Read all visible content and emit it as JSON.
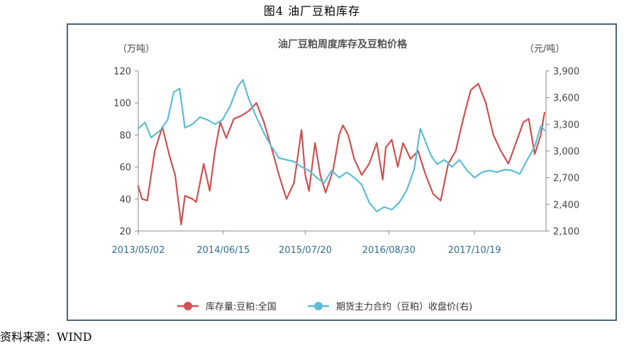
{
  "figure_title": "图4 油厂豆粕库存",
  "source": "资料来源：WIND",
  "chart_data": {
    "type": "line",
    "title": "油厂豆粕周度库存及豆粕价格",
    "left_unit": "（万吨）",
    "right_unit": "（元/吨）",
    "x_tick_labels": [
      "2013/05/02",
      "2014/06/15",
      "2015/07/20",
      "2016/08/30",
      "2017/10/19"
    ],
    "y_left": {
      "ticks": [
        20,
        40,
        60,
        80,
        100,
        120
      ],
      "lim": [
        20,
        120
      ]
    },
    "y_right": {
      "ticks": [
        "2,100",
        "2,400",
        "2,700",
        "3,000",
        "3,300",
        "3,600",
        "3,900"
      ],
      "lim": [
        2100,
        3900
      ]
    },
    "grid": false,
    "legend_position": "bottom",
    "series": [
      {
        "name": "库存量:豆粕:全国",
        "axis": "left",
        "color": "#d0504f",
        "points": [
          [
            2013.33,
            48
          ],
          [
            2013.38,
            40
          ],
          [
            2013.45,
            39
          ],
          [
            2013.55,
            70
          ],
          [
            2013.65,
            85
          ],
          [
            2013.75,
            66
          ],
          [
            2013.82,
            55
          ],
          [
            2013.9,
            24
          ],
          [
            2013.95,
            42
          ],
          [
            2014.05,
            40
          ],
          [
            2014.1,
            38
          ],
          [
            2014.2,
            62
          ],
          [
            2014.28,
            45
          ],
          [
            2014.35,
            70
          ],
          [
            2014.42,
            88
          ],
          [
            2014.5,
            78
          ],
          [
            2014.6,
            90
          ],
          [
            2014.7,
            92
          ],
          [
            2014.8,
            95
          ],
          [
            2014.9,
            100
          ],
          [
            2015.0,
            88
          ],
          [
            2015.1,
            72
          ],
          [
            2015.2,
            55
          ],
          [
            2015.3,
            40
          ],
          [
            2015.4,
            50
          ],
          [
            2015.5,
            83
          ],
          [
            2015.55,
            55
          ],
          [
            2015.6,
            45
          ],
          [
            2015.68,
            75
          ],
          [
            2015.75,
            55
          ],
          [
            2015.82,
            44
          ],
          [
            2015.92,
            58
          ],
          [
            2016.0,
            80
          ],
          [
            2016.05,
            86
          ],
          [
            2016.12,
            80
          ],
          [
            2016.2,
            65
          ],
          [
            2016.3,
            55
          ],
          [
            2016.4,
            62
          ],
          [
            2016.5,
            75
          ],
          [
            2016.58,
            52
          ],
          [
            2016.62,
            72
          ],
          [
            2016.7,
            77
          ],
          [
            2016.78,
            60
          ],
          [
            2016.85,
            75
          ],
          [
            2016.95,
            65
          ],
          [
            2017.05,
            70
          ],
          [
            2017.15,
            55
          ],
          [
            2017.25,
            43
          ],
          [
            2017.35,
            39
          ],
          [
            2017.45,
            62
          ],
          [
            2017.55,
            70
          ],
          [
            2017.65,
            90
          ],
          [
            2017.75,
            108
          ],
          [
            2017.85,
            112
          ],
          [
            2017.95,
            100
          ],
          [
            2018.05,
            80
          ],
          [
            2018.15,
            70
          ],
          [
            2018.25,
            62
          ],
          [
            2018.35,
            75
          ],
          [
            2018.45,
            88
          ],
          [
            2018.52,
            90
          ],
          [
            2018.6,
            68
          ],
          [
            2018.68,
            80
          ],
          [
            2018.73,
            94
          ]
        ]
      },
      {
        "name": "期货主力合约（豆粕）收盘价(右)",
        "axis": "right",
        "color": "#5bbdd6",
        "points": [
          [
            2013.33,
            3250
          ],
          [
            2013.42,
            3320
          ],
          [
            2013.5,
            3150
          ],
          [
            2013.62,
            3230
          ],
          [
            2013.72,
            3350
          ],
          [
            2013.8,
            3660
          ],
          [
            2013.88,
            3700
          ],
          [
            2013.95,
            3260
          ],
          [
            2014.05,
            3300
          ],
          [
            2014.15,
            3380
          ],
          [
            2014.25,
            3350
          ],
          [
            2014.35,
            3300
          ],
          [
            2014.45,
            3350
          ],
          [
            2014.55,
            3500
          ],
          [
            2014.65,
            3720
          ],
          [
            2014.72,
            3800
          ],
          [
            2014.8,
            3580
          ],
          [
            2014.9,
            3380
          ],
          [
            2015.0,
            3200
          ],
          [
            2015.1,
            3050
          ],
          [
            2015.2,
            2920
          ],
          [
            2015.3,
            2900
          ],
          [
            2015.4,
            2880
          ],
          [
            2015.5,
            2820
          ],
          [
            2015.6,
            2780
          ],
          [
            2015.7,
            2700
          ],
          [
            2015.8,
            2640
          ],
          [
            2015.9,
            2780
          ],
          [
            2016.0,
            2700
          ],
          [
            2016.1,
            2760
          ],
          [
            2016.2,
            2700
          ],
          [
            2016.3,
            2620
          ],
          [
            2016.4,
            2420
          ],
          [
            2016.5,
            2320
          ],
          [
            2016.6,
            2370
          ],
          [
            2016.7,
            2340
          ],
          [
            2016.8,
            2420
          ],
          [
            2016.9,
            2560
          ],
          [
            2017.0,
            2800
          ],
          [
            2017.08,
            3250
          ],
          [
            2017.15,
            3100
          ],
          [
            2017.22,
            2950
          ],
          [
            2017.3,
            2850
          ],
          [
            2017.4,
            2900
          ],
          [
            2017.5,
            2820
          ],
          [
            2017.6,
            2900
          ],
          [
            2017.7,
            2780
          ],
          [
            2017.8,
            2700
          ],
          [
            2017.9,
            2760
          ],
          [
            2018.0,
            2780
          ],
          [
            2018.1,
            2760
          ],
          [
            2018.2,
            2790
          ],
          [
            2018.3,
            2780
          ],
          [
            2018.4,
            2740
          ],
          [
            2018.5,
            2900
          ],
          [
            2018.6,
            3050
          ],
          [
            2018.68,
            3280
          ],
          [
            2018.73,
            3230
          ]
        ]
      }
    ]
  }
}
